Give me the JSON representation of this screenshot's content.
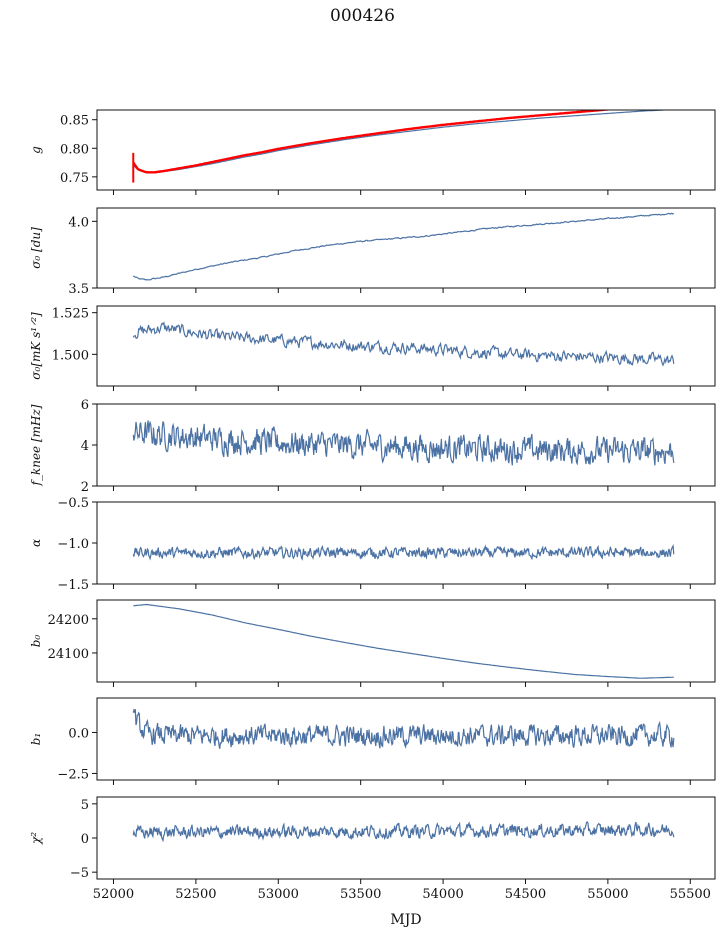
{
  "figure": {
    "title": "000426",
    "xlabel": "MJD"
  },
  "colors": {
    "series": "#4c72a4",
    "fit": "#ff0000",
    "axis": "#111111"
  },
  "chart_data": [
    {
      "type": "line",
      "id": "g",
      "ylabel": "g",
      "xlim": [
        51900,
        55650
      ],
      "ylim": [
        0.727,
        0.867
      ],
      "yticks": [
        0.75,
        0.8,
        0.85
      ],
      "ytick_labels": [
        "0.75",
        "0.80",
        "0.85"
      ],
      "series": [
        {
          "name": "data",
          "x": [
            52120,
            52150,
            52200,
            52250,
            52300,
            52400,
            52500,
            52600,
            52700,
            52800,
            52900,
            53000,
            53200,
            53400,
            53600,
            53800,
            54000,
            54200,
            54400,
            54600,
            54800,
            55000,
            55200,
            55400
          ],
          "y": [
            0.77,
            0.762,
            0.757,
            0.757,
            0.759,
            0.763,
            0.768,
            0.773,
            0.779,
            0.785,
            0.79,
            0.796,
            0.806,
            0.815,
            0.823,
            0.83,
            0.837,
            0.843,
            0.848,
            0.853,
            0.857,
            0.861,
            0.865,
            0.868
          ]
        },
        {
          "name": "fit",
          "x": [
            52120,
            52150,
            52200,
            52250,
            52300,
            52400,
            52500,
            52600,
            52700,
            52800,
            52900,
            53000,
            53200,
            53400,
            53600,
            53800,
            54000,
            54200,
            54400,
            54600,
            54800,
            55000
          ],
          "y": [
            0.775,
            0.763,
            0.758,
            0.758,
            0.76,
            0.765,
            0.77,
            0.776,
            0.782,
            0.788,
            0.793,
            0.799,
            0.809,
            0.818,
            0.826,
            0.834,
            0.841,
            0.847,
            0.853,
            0.858,
            0.863,
            0.868
          ],
          "errorbar": {
            "x": 52120,
            "y": 0.765,
            "low": 0.74,
            "high": 0.792
          }
        }
      ]
    },
    {
      "type": "line",
      "id": "sigma0",
      "ylabel": "σ₀ [du]",
      "xlim": [
        51900,
        55650
      ],
      "ylim": [
        3.5,
        4.1
      ],
      "yticks": [
        3.5,
        4.0
      ],
      "ytick_labels": [
        "3.5",
        "4.0"
      ],
      "series": [
        {
          "name": "data",
          "x": [
            52120,
            52150,
            52200,
            52300,
            52400,
            52500,
            52700,
            52900,
            53100,
            53300,
            53500,
            53700,
            53900,
            54100,
            54300,
            54500,
            54700,
            54900,
            55100,
            55300,
            55400
          ],
          "y": [
            3.59,
            3.57,
            3.56,
            3.58,
            3.61,
            3.64,
            3.69,
            3.73,
            3.78,
            3.82,
            3.85,
            3.87,
            3.89,
            3.92,
            3.95,
            3.97,
            3.99,
            4.01,
            4.03,
            4.05,
            4.06
          ],
          "noise": 0.004,
          "n": 500
        }
      ]
    },
    {
      "type": "line",
      "id": "sigma0u",
      "ylabel": "σ₀[mK s¹ᐟ²]",
      "xlim": [
        51900,
        55650
      ],
      "ylim": [
        1.481,
        1.529
      ],
      "yticks": [
        1.5,
        1.525
      ],
      "ytick_labels": [
        "1.500",
        "1.525"
      ],
      "series": [
        {
          "name": "data",
          "x": [
            52120,
            52300,
            52600,
            52900,
            53200,
            53500,
            53800,
            54100,
            54400,
            54700,
            55000,
            55300,
            55400
          ],
          "y": [
            1.513,
            1.516,
            1.511,
            1.509,
            1.507,
            1.505,
            1.504,
            1.502,
            1.5,
            1.499,
            1.498,
            1.497,
            1.496
          ],
          "noise": 0.003,
          "n": 600
        }
      ]
    },
    {
      "type": "line",
      "id": "fknee",
      "ylabel": "f_knee [mHz]",
      "xlim": [
        51900,
        55650
      ],
      "ylim": [
        2,
        6
      ],
      "yticks": [
        2,
        4,
        6
      ],
      "ytick_labels": [
        "2",
        "4",
        "6"
      ],
      "series": [
        {
          "name": "data",
          "x": [
            52120,
            52300,
            52600,
            53000,
            53400,
            53800,
            54200,
            54600,
            55000,
            55400
          ],
          "y": [
            4.6,
            4.5,
            4.3,
            4.1,
            4.0,
            3.9,
            3.8,
            3.75,
            3.7,
            3.7
          ],
          "noise": 0.55,
          "n": 800
        }
      ]
    },
    {
      "type": "line",
      "id": "alpha",
      "ylabel": "α",
      "xlim": [
        51900,
        55650
      ],
      "ylim": [
        -1.5,
        -0.5
      ],
      "yticks": [
        -1.5,
        -1.0,
        -0.5
      ],
      "ytick_labels": [
        "−1.5",
        "−1.0",
        "−0.5"
      ],
      "series": [
        {
          "name": "data",
          "x": [
            52120,
            55400
          ],
          "y": [
            -1.12,
            -1.12
          ],
          "noise": 0.055,
          "n": 800
        }
      ]
    },
    {
      "type": "line",
      "id": "b0",
      "ylabel": "b₀",
      "xlim": [
        51900,
        55650
      ],
      "ylim": [
        24015,
        24255
      ],
      "yticks": [
        24100,
        24200
      ],
      "ytick_labels": [
        "24100",
        "24200"
      ],
      "series": [
        {
          "name": "data",
          "x": [
            52120,
            52200,
            52400,
            52600,
            52800,
            53000,
            53200,
            53400,
            53600,
            53800,
            54000,
            54200,
            54400,
            54600,
            54800,
            55000,
            55200,
            55400
          ],
          "y": [
            24238,
            24242,
            24229,
            24211,
            24188,
            24169,
            24149,
            24131,
            24114,
            24099,
            24084,
            24070,
            24058,
            24047,
            24037,
            24031,
            24026,
            24029
          ]
        }
      ]
    },
    {
      "type": "line",
      "id": "b1",
      "ylabel": "b₁",
      "xlim": [
        51900,
        55650
      ],
      "ylim": [
        -2.9,
        2.1
      ],
      "yticks": [
        -2.5,
        0.0
      ],
      "ytick_labels": [
        "−2.5",
        "0.0"
      ],
      "series": [
        {
          "name": "data",
          "x": [
            52120,
            52140,
            52200,
            52400,
            55400
          ],
          "y": [
            1.5,
            0.6,
            -0.1,
            -0.2,
            -0.2
          ],
          "noise": 0.55,
          "n": 800
        }
      ]
    },
    {
      "type": "line",
      "id": "chi2",
      "ylabel": "χ²",
      "xlim": [
        51900,
        55650
      ],
      "ylim": [
        -6,
        6
      ],
      "yticks": [
        -5,
        0,
        5
      ],
      "ytick_labels": [
        "−5",
        "0",
        "5"
      ],
      "series": [
        {
          "name": "data",
          "x": [
            52120,
            53000,
            54000,
            55400
          ],
          "y": [
            0.8,
            0.9,
            1.0,
            1.2
          ],
          "noise": 0.8,
          "n": 800
        }
      ]
    }
  ],
  "xticks": [
    52000,
    52500,
    53000,
    53500,
    54000,
    54500,
    55000,
    55500
  ],
  "xtick_labels": [
    "52000",
    "52500",
    "53000",
    "53500",
    "54000",
    "54500",
    "55000",
    "55500"
  ]
}
